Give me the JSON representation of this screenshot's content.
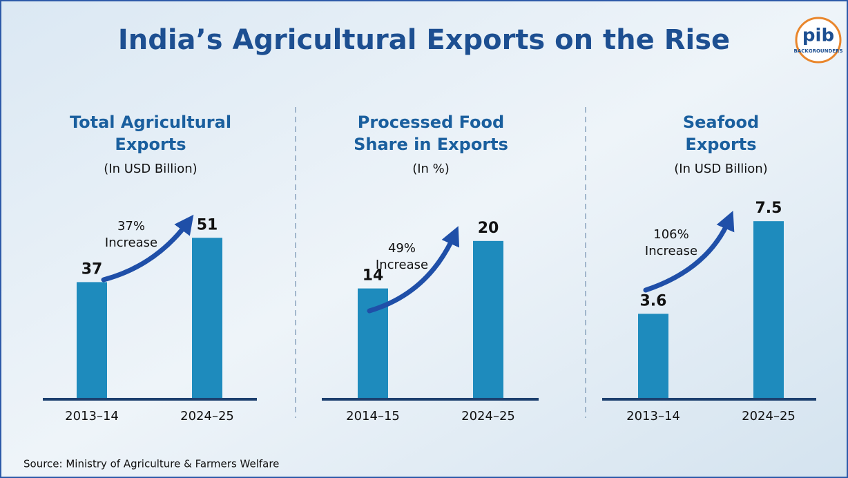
{
  "title": "India’s Agricultural Exports on the Rise",
  "logo": {
    "text": "pib",
    "subtext": "BACKGROUNDERS"
  },
  "chart_data": [
    {
      "type": "bar",
      "title": [
        "Total Agricultural",
        "Exports"
      ],
      "subtitle": "(In USD Billion)",
      "categories": [
        "2013–14",
        "2024–25"
      ],
      "values": [
        37,
        51
      ],
      "color": "#1e8bbd",
      "ylim": [
        0,
        60
      ],
      "annotation": [
        "37%",
        "Increase"
      ]
    },
    {
      "type": "bar",
      "title": [
        "Processed Food",
        "Share in Exports"
      ],
      "subtitle": "(In %)",
      "categories": [
        "2014–15",
        "2024–25"
      ],
      "values": [
        14,
        20
      ],
      "color": "#1e8bbd",
      "ylim": [
        0,
        24
      ],
      "annotation": [
        "49%",
        "Increase"
      ]
    },
    {
      "type": "bar",
      "title": [
        "Seafood",
        "Exports"
      ],
      "subtitle": "(In USD Billion)",
      "categories": [
        "2013–14",
        "2024–25"
      ],
      "values": [
        3.6,
        7.5
      ],
      "color": "#1e8bbd",
      "ylim": [
        0,
        8
      ],
      "annotation": [
        "106%",
        "Increase"
      ]
    }
  ],
  "source": "Source: Ministry of Agriculture & Farmers Welfare"
}
